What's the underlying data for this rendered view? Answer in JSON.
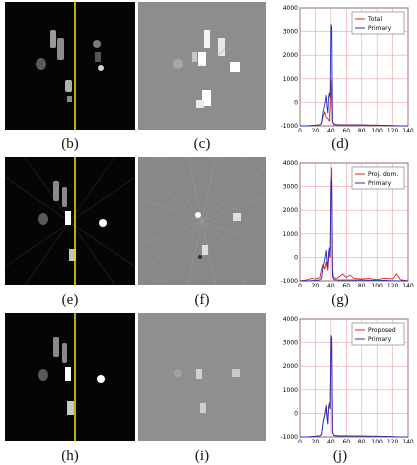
{
  "captions": [
    "(b)",
    "(c)",
    "(d)",
    "(e)",
    "(f)",
    "(g)",
    "(h)",
    "(i)",
    "(j)"
  ],
  "colors": {
    "red": "#e02020",
    "blue": "#2030c0",
    "guide_line": "#e8d800",
    "grid": "#f2a0a0"
  },
  "chart_data": [
    {
      "type": "line",
      "xlim": [
        0,
        140
      ],
      "ylim": [
        -1000,
        4000
      ],
      "xticks": [
        0,
        20,
        40,
        60,
        80,
        100,
        120,
        140
      ],
      "yticks": [
        -1000,
        0,
        1000,
        2000,
        3000,
        4000
      ],
      "grid": true,
      "legend": "top-right",
      "series": [
        {
          "name": "Total",
          "color": "#e02020",
          "x": [
            0,
            10,
            20,
            26,
            28,
            30,
            32,
            34,
            36,
            38,
            39,
            40,
            41,
            42,
            43,
            44,
            45,
            46,
            50,
            60,
            70,
            80,
            90,
            100,
            110,
            120,
            130,
            140
          ],
          "y": [
            -1000,
            -1000,
            -980,
            -950,
            -900,
            -600,
            -400,
            -650,
            -700,
            -800,
            -200,
            950,
            300,
            -850,
            -900,
            -920,
            -920,
            -950,
            -950,
            -960,
            -960,
            -960,
            -970,
            -970,
            -980,
            -990,
            -1000,
            -1000
          ]
        },
        {
          "name": "Primary",
          "color": "#2030c0",
          "x": [
            0,
            10,
            20,
            26,
            28,
            30,
            32,
            34,
            35,
            36,
            37,
            38,
            39,
            40,
            41,
            42,
            43,
            44,
            45,
            46,
            50,
            60,
            70,
            80,
            90,
            100,
            110,
            120,
            130,
            140
          ],
          "y": [
            -1000,
            -1000,
            -980,
            -950,
            -900,
            -400,
            -100,
            300,
            -200,
            -450,
            200,
            400,
            200,
            3300,
            3200,
            -800,
            -900,
            -950,
            -950,
            -950,
            -960,
            -960,
            -960,
            -960,
            -970,
            -970,
            -980,
            -990,
            -1000,
            -1000
          ]
        }
      ]
    },
    {
      "type": "line",
      "xlim": [
        0,
        140
      ],
      "ylim": [
        -1000,
        4000
      ],
      "xticks": [
        0,
        20,
        40,
        60,
        80,
        100,
        120,
        140
      ],
      "yticks": [
        -1000,
        0,
        1000,
        2000,
        3000,
        4000
      ],
      "grid": true,
      "legend": "top-right",
      "series": [
        {
          "name": "Proj. dom.",
          "color": "#e02020",
          "x": [
            0,
            10,
            15,
            20,
            26,
            28,
            30,
            32,
            34,
            35,
            36,
            37,
            38,
            39,
            40,
            41,
            42,
            43,
            44,
            45,
            46,
            50,
            55,
            60,
            65,
            70,
            80,
            90,
            100,
            110,
            120,
            125,
            130,
            140
          ],
          "y": [
            -1000,
            -950,
            -900,
            -920,
            -850,
            -500,
            -300,
            -500,
            -200,
            -400,
            -550,
            -100,
            200,
            0,
            3000,
            3800,
            -500,
            -800,
            -850,
            -880,
            -900,
            -850,
            -700,
            -850,
            -750,
            -900,
            -920,
            -900,
            -950,
            -880,
            -920,
            -700,
            -950,
            -1000
          ]
        },
        {
          "name": "Primary",
          "color": "#2030c0",
          "x": [
            0,
            10,
            20,
            26,
            28,
            30,
            32,
            34,
            35,
            36,
            37,
            38,
            39,
            40,
            41,
            42,
            43,
            44,
            45,
            46,
            50,
            60,
            70,
            80,
            90,
            100,
            110,
            120,
            130,
            140
          ],
          "y": [
            -1000,
            -1000,
            -980,
            -950,
            -900,
            -400,
            -100,
            300,
            -200,
            -450,
            200,
            400,
            200,
            3300,
            3200,
            -800,
            -900,
            -950,
            -950,
            -950,
            -960,
            -960,
            -960,
            -960,
            -970,
            -970,
            -980,
            -990,
            -1000,
            -1000
          ]
        }
      ]
    },
    {
      "type": "line",
      "xlim": [
        0,
        140
      ],
      "ylim": [
        -1000,
        4000
      ],
      "xticks": [
        0,
        20,
        40,
        60,
        80,
        100,
        120,
        140
      ],
      "yticks": [
        -1000,
        0,
        1000,
        2000,
        3000,
        4000
      ],
      "grid": true,
      "legend": "top-right",
      "series": [
        {
          "name": "Proposed",
          "color": "#e02020",
          "x": [
            0,
            10,
            20,
            26,
            28,
            30,
            32,
            34,
            35,
            36,
            37,
            38,
            39,
            40,
            41,
            42,
            43,
            44,
            45,
            46,
            50,
            60,
            70,
            80,
            90,
            100,
            110,
            120,
            130,
            140
          ],
          "y": [
            -1000,
            -1000,
            -980,
            -950,
            -900,
            -380,
            -80,
            350,
            -150,
            -400,
            250,
            450,
            250,
            3250,
            3150,
            -780,
            -880,
            -930,
            -940,
            -940,
            -950,
            -950,
            -960,
            -960,
            -970,
            -970,
            -980,
            -990,
            -1000,
            -1000
          ]
        },
        {
          "name": "Primary",
          "color": "#2030c0",
          "x": [
            0,
            10,
            20,
            26,
            28,
            30,
            32,
            34,
            35,
            36,
            37,
            38,
            39,
            40,
            41,
            42,
            43,
            44,
            45,
            46,
            50,
            60,
            70,
            80,
            90,
            100,
            110,
            120,
            130,
            140
          ],
          "y": [
            -1000,
            -1000,
            -980,
            -950,
            -900,
            -400,
            -100,
            300,
            -200,
            -450,
            200,
            400,
            200,
            3300,
            3200,
            -800,
            -900,
            -950,
            -950,
            -950,
            -960,
            -960,
            -960,
            -960,
            -970,
            -970,
            -980,
            -990,
            -1000,
            -1000
          ]
        }
      ]
    }
  ]
}
